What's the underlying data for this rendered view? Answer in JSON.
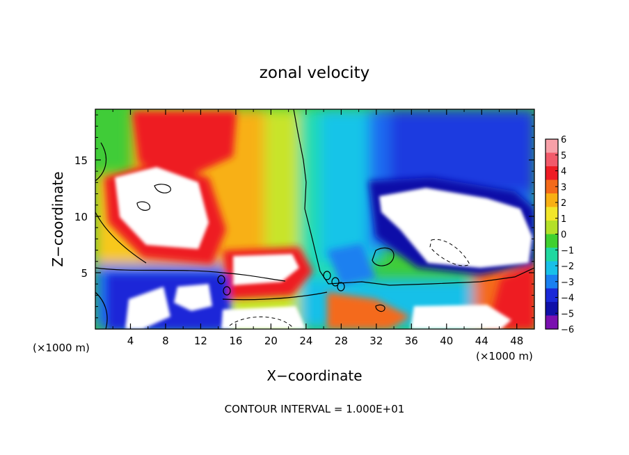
{
  "chart_data": {
    "type": "heatmap",
    "title": "zonal velocity",
    "xlabel": "X−coordinate",
    "ylabel": "Z−coordinate",
    "x_unit_note": "(×1000 m)",
    "z_unit_note": "(×1000 m)",
    "footer": "CONTOUR INTERVAL = 1.000E+01",
    "xlim": [
      0,
      50
    ],
    "ylim": [
      0,
      19.5
    ],
    "x_ticks": [
      "4",
      "8",
      "12",
      "16",
      "20",
      "24",
      "28",
      "32",
      "36",
      "40",
      "44",
      "48"
    ],
    "y_ticks": [
      "5",
      "10",
      "15"
    ],
    "colorbar": {
      "min": -6,
      "max": 6,
      "ticks": [
        "6",
        "5",
        "4",
        "3",
        "2",
        "1",
        "0",
        "−1",
        "−2",
        "−3",
        "−4",
        "−5",
        "−6"
      ],
      "colors": [
        "#f7a0a8",
        "#f25a6a",
        "#ee1c24",
        "#f46a1a",
        "#f8b014",
        "#f2e62a",
        "#b4e028",
        "#40d030",
        "#20d8a0",
        "#18c0e8",
        "#1a80f0",
        "#1a28d8",
        "#1010a8",
        "#7a10b0"
      ]
    },
    "grid": false,
    "legend": "right"
  }
}
